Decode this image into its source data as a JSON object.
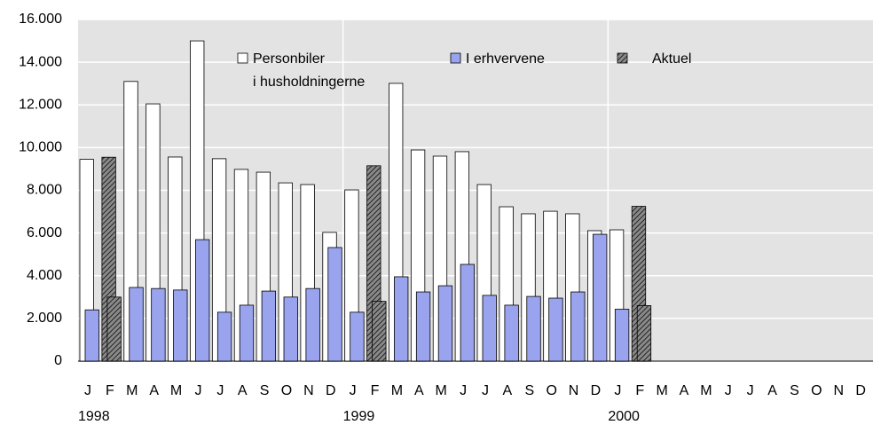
{
  "chart_data": {
    "type": "bar",
    "categories": [
      "J",
      "F",
      "M",
      "A",
      "M",
      "J",
      "J",
      "A",
      "S",
      "O",
      "N",
      "D",
      "J",
      "F",
      "M",
      "A",
      "M",
      "J",
      "J",
      "A",
      "S",
      "O",
      "N",
      "D",
      "J",
      "F",
      "M",
      "A",
      "M",
      "J",
      "J",
      "A",
      "S",
      "O",
      "N",
      "D"
    ],
    "year_labels": [
      "1998",
      null,
      null,
      null,
      null,
      null,
      null,
      null,
      null,
      null,
      null,
      null,
      "1999",
      null,
      null,
      null,
      null,
      null,
      null,
      null,
      null,
      null,
      null,
      null,
      "2000",
      null,
      null,
      null,
      null,
      null,
      null,
      null,
      null,
      null,
      null,
      null
    ],
    "ylim": [
      0,
      16000
    ],
    "yticks": [
      {
        "value": 0,
        "label": "0"
      },
      {
        "value": 2000,
        "label": "2.000"
      },
      {
        "value": 4000,
        "label": "4.000"
      },
      {
        "value": 6000,
        "label": "6.000"
      },
      {
        "value": 8000,
        "label": "8.000"
      },
      {
        "value": 10000,
        "label": "10.000"
      },
      {
        "value": 12000,
        "label": "12.000"
      },
      {
        "value": 14000,
        "label": "14.000"
      },
      {
        "value": 16000,
        "label": "16.000"
      }
    ],
    "grid": true,
    "background": "#e3e3e3",
    "series": [
      {
        "name": [
          "Personbiler",
          "i husholdningerne"
        ],
        "color": "#ffffff",
        "values": [
          9450,
          null,
          13100,
          12050,
          9560,
          15000,
          9480,
          8980,
          8850,
          8350,
          8270,
          6030,
          8020,
          null,
          13010,
          9890,
          9600,
          9810,
          8270,
          7230,
          6900,
          7020,
          6900,
          6110,
          6150,
          null,
          null,
          null,
          null,
          null,
          null,
          null,
          null,
          null,
          null,
          null
        ]
      },
      {
        "name": [
          "I erhvervene"
        ],
        "color": "#9aa4ee",
        "values": [
          2400,
          null,
          3450,
          3400,
          3330,
          5690,
          2290,
          2620,
          3280,
          3000,
          3400,
          5320,
          2290,
          null,
          3950,
          3240,
          3530,
          4530,
          3080,
          2620,
          3030,
          2950,
          3240,
          5940,
          2430,
          null,
          null,
          null,
          null,
          null,
          null,
          null,
          null,
          null,
          null,
          null
        ]
      },
      {
        "name": [
          "Aktuel"
        ],
        "color": "hatch",
        "values": [
          null,
          9550,
          null,
          null,
          null,
          null,
          null,
          null,
          null,
          null,
          null,
          null,
          null,
          9150,
          null,
          null,
          null,
          null,
          null,
          null,
          null,
          null,
          null,
          null,
          null,
          7250,
          null,
          null,
          null,
          null,
          null,
          null,
          null,
          null,
          null,
          null
        ]
      },
      {
        "color": "hatch",
        "values": [
          null,
          3000,
          null,
          null,
          null,
          null,
          null,
          null,
          null,
          null,
          null,
          null,
          null,
          2800,
          null,
          null,
          null,
          null,
          null,
          null,
          null,
          null,
          null,
          null,
          null,
          2600,
          null,
          null,
          null,
          null,
          null,
          null,
          null,
          null,
          null,
          null
        ]
      }
    ]
  }
}
